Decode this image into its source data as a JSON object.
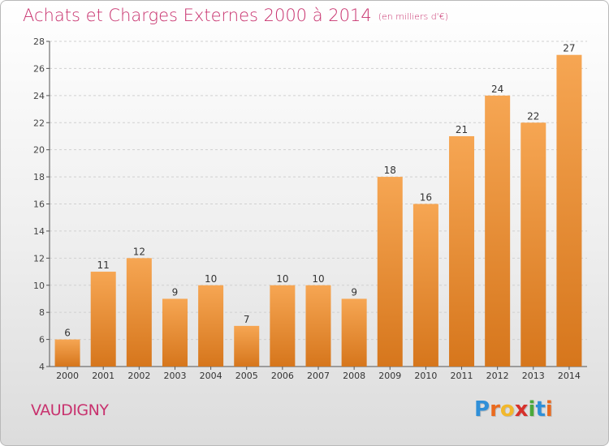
{
  "header": {
    "title": "Achats et Charges Externes 2000 à 2014",
    "subtitle": "(en milliers d'€)"
  },
  "footer": {
    "location": "VAUDIGNY",
    "logo_text": "Proxiti"
  },
  "colors": {
    "title": "#c8326e",
    "bar_light": "#f6a653",
    "bar_dark": "#d6761c",
    "logo_letters": [
      "#2f8fd8",
      "#ea6a1e",
      "#f2b82c",
      "#d6312b",
      "#4aa93b",
      "#2f8fd8",
      "#ea6a1e"
    ]
  },
  "chart_data": {
    "type": "bar",
    "title": "Achats et Charges Externes 2000 à 2014",
    "categories": [
      "2000",
      "2001",
      "2002",
      "2003",
      "2004",
      "2005",
      "2006",
      "2007",
      "2008",
      "2009",
      "2010",
      "2011",
      "2012",
      "2013",
      "2014"
    ],
    "values": [
      6,
      11,
      12,
      9,
      10,
      7,
      10,
      10,
      9,
      18,
      16,
      21,
      24,
      22,
      27
    ],
    "ylim": [
      4,
      28
    ],
    "yticks": [
      4,
      6,
      8,
      10,
      12,
      14,
      16,
      18,
      20,
      22,
      24,
      26,
      28
    ],
    "grid": true,
    "data_labels": true
  }
}
